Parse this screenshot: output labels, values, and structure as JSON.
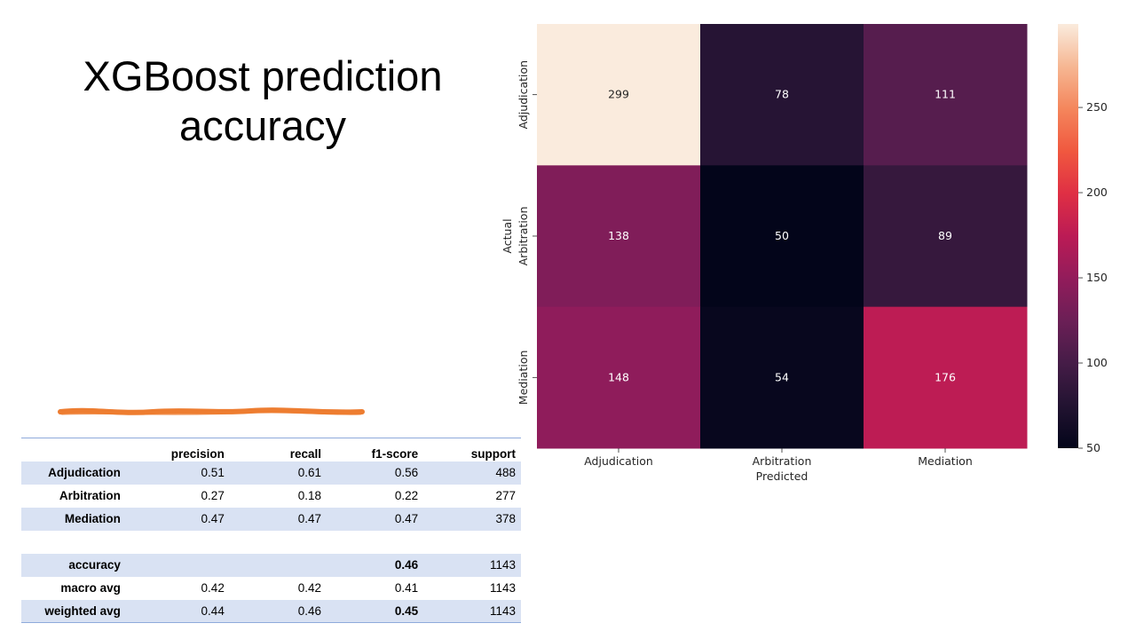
{
  "slide": {
    "title_line1": "XGBoost prediction",
    "title_line2": "accuracy"
  },
  "report": {
    "headers": [
      "",
      "precision",
      "recall",
      "f1-score",
      "support"
    ],
    "rows": [
      {
        "label": "Adjudication",
        "precision": "0.51",
        "recall": "0.61",
        "f1": "0.56",
        "support": "488"
      },
      {
        "label": "Arbitration",
        "precision": "0.27",
        "recall": "0.18",
        "f1": "0.22",
        "support": "277"
      },
      {
        "label": "Mediation",
        "precision": "0.47",
        "recall": "0.47",
        "f1": "0.47",
        "support": "378"
      }
    ],
    "summary": [
      {
        "label": "accuracy",
        "precision": "",
        "recall": "",
        "f1": "0.46",
        "support": "1143"
      },
      {
        "label": "macro avg",
        "precision": "0.42",
        "recall": "0.42",
        "f1": "0.41",
        "support": "1143"
      },
      {
        "label": "weighted avg",
        "precision": "0.44",
        "recall": "0.46",
        "f1": "0.45",
        "support": "1143"
      }
    ]
  },
  "chart_data": {
    "type": "heatmap",
    "title": "",
    "xlabel": "Predicted",
    "ylabel": "Actual",
    "x_categories": [
      "Adjudication",
      "Arbitration",
      "Mediation"
    ],
    "y_categories": [
      "Adjudication",
      "Arbitration",
      "Mediation"
    ],
    "values": [
      [
        299,
        78,
        111
      ],
      [
        138,
        50,
        89
      ],
      [
        148,
        54,
        176
      ]
    ],
    "colorbar_range": [
      50,
      299
    ],
    "colorbar_ticks": [
      50,
      100,
      150,
      200,
      250
    ],
    "colormap": "rocket"
  }
}
